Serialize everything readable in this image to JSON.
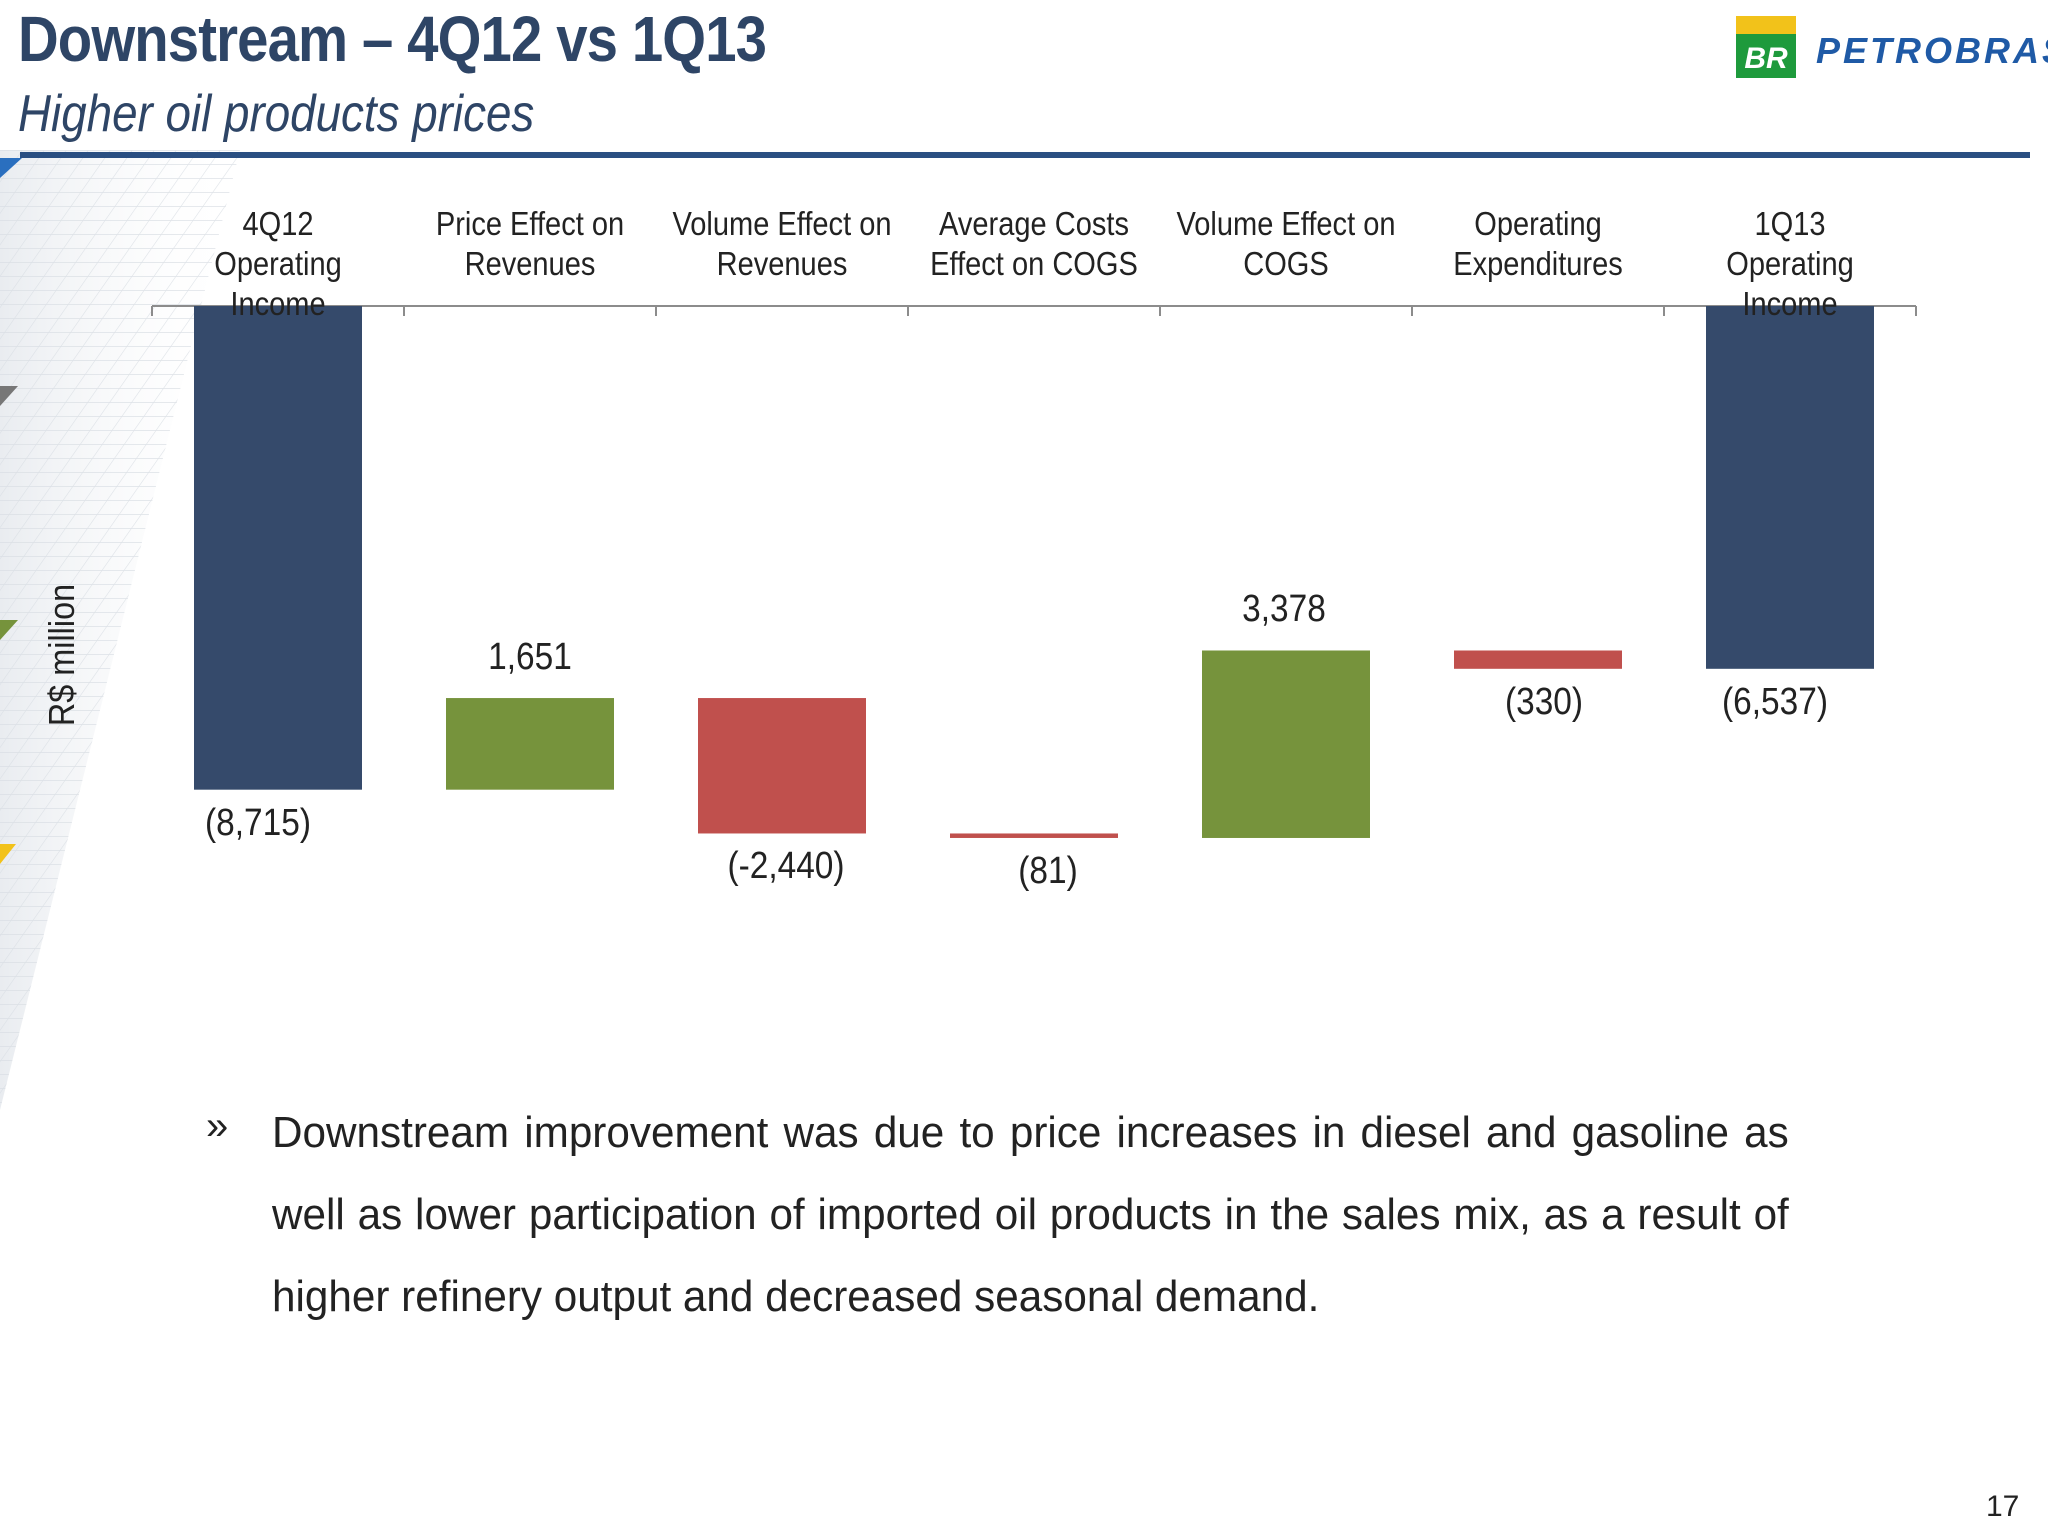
{
  "header": {
    "title": "Downstream – 4Q12 vs 1Q13",
    "subtitle": "Higher oil products prices"
  },
  "logo": {
    "mark_text": "BR",
    "wordmark": "PETROBRAS"
  },
  "colors": {
    "total": "#354a6b",
    "increase": "#76933c",
    "decrease": "#c0504d",
    "title": "#2e4566",
    "rule": "#2a4f82"
  },
  "chart_data": {
    "type": "bar",
    "subtype": "waterfall",
    "ylabel": "R$ million",
    "unit": "R$ million",
    "categories": [
      "4Q12 Operating Income",
      "Price Effect on Revenues",
      "Volume Effect on Revenues",
      "Average Costs Effect on COGS",
      "Volume Effect on COGS",
      "Operating Expenditures",
      "1Q13 Operating Income"
    ],
    "category_lines": [
      [
        "4Q12",
        "Operating Income"
      ],
      [
        "Price Effect on",
        "Revenues"
      ],
      [
        "Volume Effect on",
        "Revenues"
      ],
      [
        "Average Costs",
        "Effect on COGS"
      ],
      [
        "Volume Effect on",
        "COGS"
      ],
      [
        "Operating",
        "Expenditures"
      ],
      [
        "1Q13",
        "Operating Income"
      ]
    ],
    "values": [
      -8715,
      1651,
      -2440,
      -81,
      3378,
      -330,
      -6537
    ],
    "kinds": [
      "total",
      "increase",
      "decrease",
      "decrease",
      "increase",
      "decrease",
      "total"
    ],
    "data_labels": [
      "(8,715)",
      "1,651",
      "(-2,440)",
      "(81)",
      "3,378",
      "(330)",
      "(6,537)"
    ],
    "ylim": [
      -9000,
      0
    ],
    "grid": false,
    "legend": "none"
  },
  "bullets": [
    {
      "marker": "»",
      "text": "Downstream improvement was due to price increases in diesel and gasoline as well as lower participation of imported oil products in the sales mix, as a result of higher refinery output and decreased seasonal demand."
    }
  ],
  "footer": {
    "page_number": "17"
  }
}
